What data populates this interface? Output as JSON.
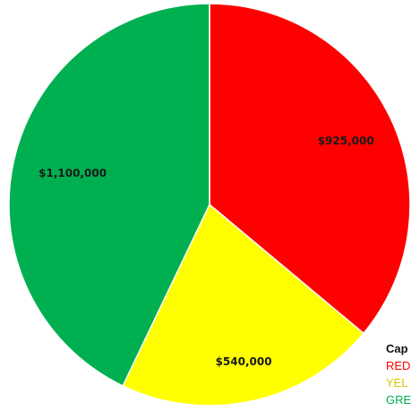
{
  "chart_data": {
    "type": "pie",
    "slices": [
      {
        "label": "$925,000",
        "value": 925000,
        "color": "#ff0000"
      },
      {
        "label": "$540,000",
        "value": 540000,
        "color": "#ffff00"
      },
      {
        "label": "$1,100,000",
        "value": 1100000,
        "color": "#00b050"
      }
    ],
    "start": "12 o'clock",
    "direction": "clockwise"
  },
  "legend": {
    "title": "Cap",
    "entries": [
      {
        "text": "RED",
        "color": "#ff0000"
      },
      {
        "text": "YEL",
        "color": "#d6c800"
      },
      {
        "text": "GRE",
        "color": "#00b050"
      }
    ]
  }
}
